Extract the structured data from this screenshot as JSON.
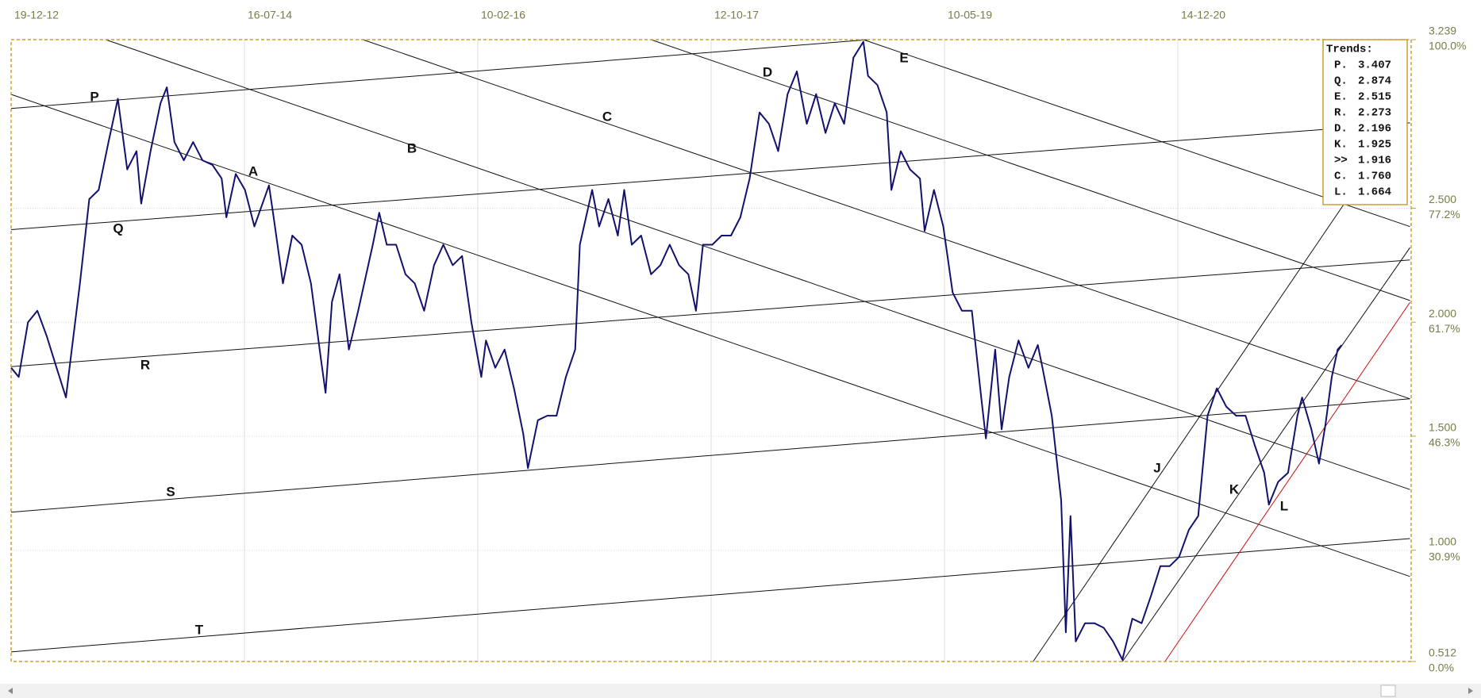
{
  "chart_data": {
    "type": "line",
    "color": "#12126e",
    "grid": true,
    "xlim": [
      0,
      2400
    ],
    "xticks": [
      {
        "value": 0,
        "label": "19-12-12"
      },
      {
        "value": 400,
        "label": "16-07-14"
      },
      {
        "value": 800,
        "label": "10-02-16"
      },
      {
        "value": 1200,
        "label": "12-10-17"
      },
      {
        "value": 1600,
        "label": "10-05-19"
      },
      {
        "value": 2000,
        "label": "14-12-20"
      }
    ],
    "ylim": [
      0.512,
      3.239
    ],
    "yticks": [
      3.239,
      {
        "value": 2.5,
        "label": "2.500"
      },
      {
        "value": 2,
        "label": "2.000"
      },
      {
        "value": 1.5,
        "label": "1.500"
      },
      {
        "value": 1,
        "label": "1.000"
      },
      0.512
    ],
    "ytick_percent_labels": [
      "100.0%",
      "77.2%",
      "61.7%",
      "46.3%",
      "30.9%",
      "0.0%"
    ],
    "x": [
      0,
      13,
      29,
      45,
      61,
      78,
      94,
      102,
      118,
      134,
      150,
      167,
      183,
      199,
      215,
      223,
      239,
      256,
      267,
      280,
      296,
      312,
      328,
      345,
      361,
      369,
      385,
      401,
      417,
      442,
      450,
      466,
      482,
      498,
      514,
      531,
      539,
      550,
      563,
      579,
      595,
      620,
      631,
      644,
      660,
      676,
      692,
      708,
      725,
      741,
      757,
      773,
      789,
      806,
      814,
      830,
      846,
      862,
      878,
      886,
      903,
      919,
      935,
      951,
      967,
      975,
      996,
      1008,
      1024,
      1040,
      1051,
      1064,
      1080,
      1097,
      1113,
      1129,
      1145,
      1161,
      1174,
      1186,
      1202,
      1218,
      1234,
      1250,
      1266,
      1283,
      1299,
      1315,
      1331,
      1347,
      1364,
      1380,
      1396,
      1412,
      1428,
      1444,
      1461,
      1469,
      1485,
      1501,
      1509,
      1525,
      1541,
      1558,
      1566,
      1582,
      1598,
      1614,
      1630,
      1647,
      1663,
      1671,
      1687,
      1698,
      1711,
      1727,
      1744,
      1760,
      1768,
      1784,
      1800,
      1808,
      1816,
      1825,
      1841,
      1857,
      1873,
      1889,
      1905,
      1922,
      1938,
      1954,
      1970,
      1986,
      2002,
      2019,
      2035,
      2051,
      2067,
      2083,
      2100,
      2116,
      2132,
      2148,
      2156,
      2172,
      2189,
      2205,
      2213,
      2229,
      2242,
      2253,
      2264,
      2274,
      2281
    ],
    "values": [
      1.8,
      1.76,
      2.0,
      2.05,
      1.94,
      1.8,
      1.67,
      1.84,
      2.17,
      2.54,
      2.58,
      2.79,
      2.98,
      2.67,
      2.75,
      2.52,
      2.75,
      2.96,
      3.03,
      2.79,
      2.71,
      2.79,
      2.71,
      2.69,
      2.63,
      2.46,
      2.65,
      2.58,
      2.42,
      2.6,
      2.46,
      2.17,
      2.38,
      2.34,
      2.17,
      1.84,
      1.69,
      2.09,
      2.21,
      1.88,
      2.05,
      2.34,
      2.48,
      2.34,
      2.34,
      2.21,
      2.17,
      2.05,
      2.25,
      2.34,
      2.25,
      2.29,
      2.0,
      1.76,
      1.92,
      1.8,
      1.88,
      1.71,
      1.51,
      1.36,
      1.57,
      1.59,
      1.59,
      1.76,
      1.88,
      2.34,
      2.58,
      2.42,
      2.54,
      2.38,
      2.58,
      2.34,
      2.38,
      2.21,
      2.25,
      2.34,
      2.25,
      2.21,
      2.05,
      2.34,
      2.34,
      2.38,
      2.38,
      2.46,
      2.63,
      2.92,
      2.87,
      2.75,
      3.0,
      3.1,
      2.87,
      3.0,
      2.83,
      2.96,
      2.87,
      3.16,
      3.23,
      3.08,
      3.04,
      2.92,
      2.58,
      2.75,
      2.67,
      2.63,
      2.4,
      2.58,
      2.42,
      2.13,
      2.05,
      2.05,
      1.67,
      1.49,
      1.88,
      1.53,
      1.76,
      1.92,
      1.8,
      1.9,
      1.8,
      1.59,
      1.22,
      0.64,
      1.15,
      0.6,
      0.68,
      0.68,
      0.66,
      0.6,
      0.52,
      0.7,
      0.68,
      0.8,
      0.93,
      0.93,
      0.97,
      1.09,
      1.15,
      1.59,
      1.71,
      1.63,
      1.59,
      1.59,
      1.46,
      1.34,
      1.2,
      1.3,
      1.34,
      1.59,
      1.67,
      1.53,
      1.38,
      1.55,
      1.76,
      1.88,
      1.9
    ],
    "trend_lines": [
      {
        "name": "P",
        "x": [
          0,
          1469
        ],
        "values": [
          2.937,
          3.239
        ]
      },
      {
        "name": "Q",
        "x": [
          0,
          2398
        ],
        "values": [
          2.406,
          2.874
        ]
      },
      {
        "name": "A",
        "x": [
          0,
          2398
        ],
        "values": [
          2.999,
          0.885
        ]
      },
      {
        "name": "B",
        "x": [
          162,
          2398
        ],
        "values": [
          3.239,
          1.266
        ]
      },
      {
        "name": "C",
        "x": [
          603,
          2398
        ],
        "values": [
          3.239,
          1.664
        ]
      },
      {
        "name": "D",
        "x": [
          1097,
          2398
        ],
        "values": [
          3.239,
          2.095
        ]
      },
      {
        "name": "E",
        "x": [
          1461,
          2398
        ],
        "values": [
          3.239,
          2.419
        ]
      },
      {
        "name": "R",
        "x": [
          0,
          2398
        ],
        "values": [
          1.805,
          2.273
        ]
      },
      {
        "name": "S",
        "x": [
          0,
          2398
        ],
        "values": [
          1.167,
          1.664
        ]
      },
      {
        "name": "T",
        "x": [
          0,
          2398
        ],
        "values": [
          0.554,
          1.051
        ]
      },
      {
        "name": "J",
        "x": [
          1752,
          2286
        ],
        "values": [
          0.512,
          2.522
        ]
      },
      {
        "name": "K",
        "x": [
          1905,
          2398
        ],
        "values": [
          0.512,
          2.327
        ]
      },
      {
        "name": "L",
        "x": [
          1978,
          2398
        ],
        "values": [
          0.512,
          2.087
        ],
        "color": "#d01010"
      }
    ],
    "legend": {
      "title": "Trends:",
      "entries": [
        {
          "label": "P.",
          "value": 3.407
        },
        {
          "label": "Q.",
          "value": 2.874
        },
        {
          "label": "E.",
          "value": 2.515
        },
        {
          "label": "R.",
          "value": 2.273
        },
        {
          "label": "D.",
          "value": 2.196
        },
        {
          "label": "K.",
          "value": 1.925
        },
        {
          "label": ">>",
          "value": 1.916
        },
        {
          "label": "C.",
          "value": 1.76,
          "value_label": "1.760"
        },
        {
          "label": "L.",
          "value": 1.664,
          "color": "#e00000"
        }
      ]
    }
  }
}
